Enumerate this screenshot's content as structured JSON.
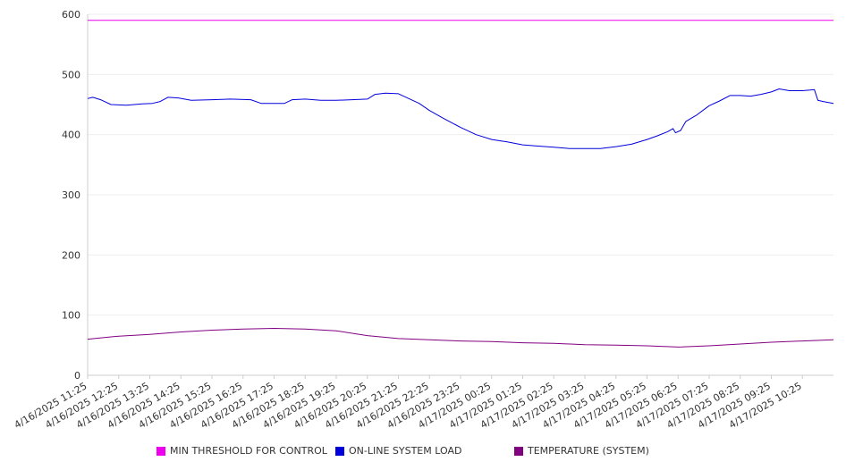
{
  "chart_data": {
    "type": "line",
    "ylim": [
      0,
      600
    ],
    "y_ticks": [
      "0",
      "100",
      "200",
      "300",
      "400",
      "500",
      "600"
    ],
    "x_tick_labels": [
      "4/16/2025 11:25",
      "4/16/2025 12:25",
      "4/16/2025 13:25",
      "4/16/2025 14:25",
      "4/16/2025 15:25",
      "4/16/2025 16:25",
      "4/16/2025 17:25",
      "4/16/2025 18:25",
      "4/16/2025 19:25",
      "4/16/2025 20:25",
      "4/16/2025 21:25",
      "4/16/2025 22:25",
      "4/16/2025 23:25",
      "4/17/2025 00:25",
      "4/17/2025 01:25",
      "4/17/2025 02:25",
      "4/17/2025 03:25",
      "4/17/2025 04:25",
      "4/17/2025 05:25",
      "4/17/2025 06:25",
      "4/17/2025 07:25",
      "4/17/2025 08:25",
      "4/17/2025 09:25",
      "4/17/2025 10:25"
    ],
    "x_range": [
      "4/16/2025 11:25",
      "4/17/2025 11:25"
    ],
    "grid": true,
    "legend_position": "bottom",
    "series": [
      {
        "name": "MIN THRESHOLD FOR CONTROL",
        "color": "#ee00ee",
        "points": [
          [
            "4/16/2025 11:25",
            590
          ],
          [
            "4/17/2025 11:25",
            590
          ]
        ]
      },
      {
        "name": "ON-LINE SYSTEM LOAD",
        "color": "#0000dd",
        "points": [
          [
            "4/16/2025 11:25",
            460
          ],
          [
            "4/16/2025 11:35",
            462
          ],
          [
            "4/16/2025 11:50",
            458
          ],
          [
            "4/16/2025 12:10",
            450
          ],
          [
            "4/16/2025 12:40",
            449
          ],
          [
            "4/16/2025 13:10",
            451
          ],
          [
            "4/16/2025 13:30",
            452
          ],
          [
            "4/16/2025 13:45",
            455
          ],
          [
            "4/16/2025 14:00",
            462
          ],
          [
            "4/16/2025 14:20",
            461
          ],
          [
            "4/16/2025 14:45",
            457
          ],
          [
            "4/16/2025 15:25",
            458
          ],
          [
            "4/16/2025 16:00",
            459
          ],
          [
            "4/16/2025 16:40",
            458
          ],
          [
            "4/16/2025 17:00",
            452
          ],
          [
            "4/16/2025 17:25",
            452
          ],
          [
            "4/16/2025 17:45",
            452
          ],
          [
            "4/16/2025 18:00",
            458
          ],
          [
            "4/16/2025 18:25",
            459
          ],
          [
            "4/16/2025 18:55",
            457
          ],
          [
            "4/16/2025 19:25",
            457
          ],
          [
            "4/16/2025 19:55",
            458
          ],
          [
            "4/16/2025 20:25",
            459
          ],
          [
            "4/16/2025 20:40",
            467
          ],
          [
            "4/16/2025 21:00",
            469
          ],
          [
            "4/16/2025 21:25",
            468
          ],
          [
            "4/16/2025 21:45",
            460
          ],
          [
            "4/16/2025 22:05",
            452
          ],
          [
            "4/16/2025 22:25",
            440
          ],
          [
            "4/16/2025 22:50",
            428
          ],
          [
            "4/16/2025 23:25",
            412
          ],
          [
            "4/16/2025 23:55",
            400
          ],
          [
            "4/17/2025 00:25",
            392
          ],
          [
            "4/17/2025 00:55",
            388
          ],
          [
            "4/17/2025 01:25",
            383
          ],
          [
            "4/17/2025 01:55",
            381
          ],
          [
            "4/17/2025 02:25",
            379
          ],
          [
            "4/17/2025 02:55",
            377
          ],
          [
            "4/17/2025 03:25",
            377
          ],
          [
            "4/17/2025 03:55",
            377
          ],
          [
            "4/17/2025 04:25",
            380
          ],
          [
            "4/17/2025 04:55",
            384
          ],
          [
            "4/17/2025 05:25",
            392
          ],
          [
            "4/17/2025 05:45",
            398
          ],
          [
            "4/17/2025 06:05",
            405
          ],
          [
            "4/17/2025 06:15",
            410
          ],
          [
            "4/17/2025 06:20",
            403
          ],
          [
            "4/17/2025 06:30",
            407
          ],
          [
            "4/17/2025 06:40",
            422
          ],
          [
            "4/17/2025 07:00",
            432
          ],
          [
            "4/17/2025 07:25",
            448
          ],
          [
            "4/17/2025 07:45",
            456
          ],
          [
            "4/17/2025 08:05",
            465
          ],
          [
            "4/17/2025 08:25",
            465
          ],
          [
            "4/17/2025 08:45",
            464
          ],
          [
            "4/17/2025 09:05",
            467
          ],
          [
            "4/17/2025 09:25",
            471
          ],
          [
            "4/17/2025 09:40",
            476
          ],
          [
            "4/17/2025 10:00",
            473
          ],
          [
            "4/17/2025 10:25",
            473
          ],
          [
            "4/17/2025 10:40",
            474
          ],
          [
            "4/17/2025 10:48",
            475
          ],
          [
            "4/17/2025 10:55",
            457
          ],
          [
            "4/17/2025 11:05",
            455
          ],
          [
            "4/17/2025 11:25",
            452
          ]
        ]
      },
      {
        "name": "TEMPERATURE (SYSTEM)",
        "color": "#800080",
        "points": [
          [
            "4/16/2025 11:25",
            60
          ],
          [
            "4/16/2025 12:25",
            65
          ],
          [
            "4/16/2025 13:25",
            68
          ],
          [
            "4/16/2025 14:25",
            72
          ],
          [
            "4/16/2025 15:25",
            75
          ],
          [
            "4/16/2025 16:25",
            77
          ],
          [
            "4/16/2025 17:25",
            78
          ],
          [
            "4/16/2025 18:25",
            77
          ],
          [
            "4/16/2025 19:25",
            74
          ],
          [
            "4/16/2025 20:25",
            66
          ],
          [
            "4/16/2025 21:25",
            61
          ],
          [
            "4/16/2025 22:25",
            59
          ],
          [
            "4/16/2025 23:25",
            57
          ],
          [
            "4/17/2025 00:25",
            56
          ],
          [
            "4/17/2025 01:25",
            54
          ],
          [
            "4/17/2025 02:25",
            53
          ],
          [
            "4/17/2025 03:25",
            51
          ],
          [
            "4/17/2025 04:25",
            50
          ],
          [
            "4/17/2025 05:25",
            49
          ],
          [
            "4/17/2025 06:25",
            47
          ],
          [
            "4/17/2025 07:25",
            49
          ],
          [
            "4/17/2025 08:25",
            52
          ],
          [
            "4/17/2025 09:25",
            55
          ],
          [
            "4/17/2025 10:25",
            57
          ],
          [
            "4/17/2025 11:25",
            59
          ]
        ]
      }
    ]
  }
}
